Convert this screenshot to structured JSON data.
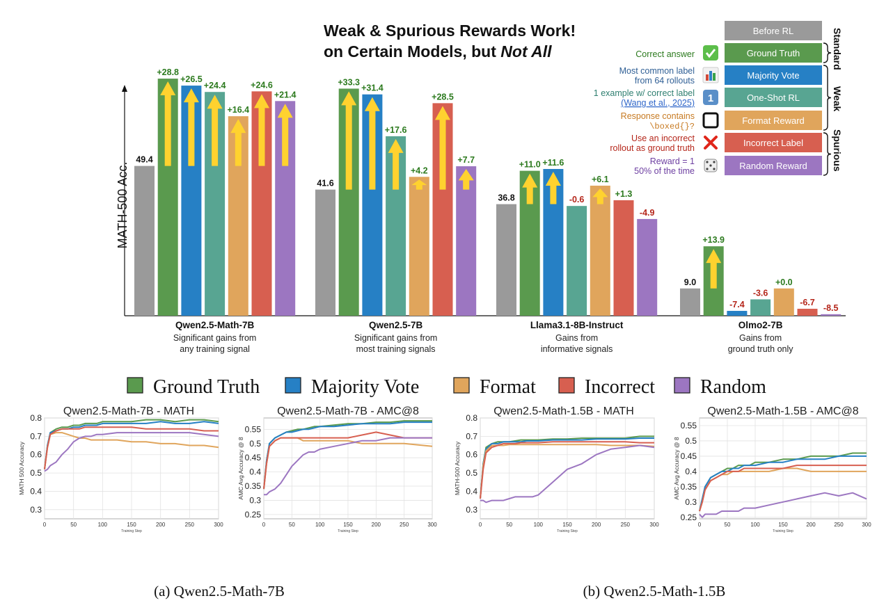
{
  "colors": {
    "before": "#9a9a9a",
    "ground_truth": "#5a9a4e",
    "majority_vote": "#2680c5",
    "one_shot": "#58a592",
    "format": "#e0a55c",
    "incorrect": "#d75f50",
    "random": "#9c76c1",
    "arrow": "#ffd22f",
    "pos_label": "#2c7a1e",
    "neg_label": "#b5261a",
    "header_gray": "#9a9a9a"
  },
  "top": {
    "title_line1": "Weak & Spurious Rewards Work!",
    "title_line2_a": "on Certain Models, but ",
    "title_line2_b": "Not All",
    "ylabel": "MATH-500 Acc.",
    "legend_header": "Before RL",
    "legend": [
      {
        "key": "ground_truth",
        "label": "Ground Truth",
        "desc": [
          "Correct answer"
        ],
        "desc_color": "#2c7a1e",
        "icon": "check-icon"
      },
      {
        "key": "majority_vote",
        "label": "Majority Vote",
        "desc": [
          "Most common label",
          "from 64 rollouts"
        ],
        "desc_color": "#2f5f95",
        "icon": "bar-chart-icon"
      },
      {
        "key": "one_shot",
        "label": "One-Shot RL",
        "desc": [
          "1 example w/ correct label",
          "(Wang et al., 2025)"
        ],
        "desc_color": "#2f7f70",
        "icon": "one-icon"
      },
      {
        "key": "format",
        "label": "Format Reward",
        "desc": [
          "Response contains",
          "\\boxed{}?"
        ],
        "desc_color": "#c77a22",
        "icon": "box-icon"
      },
      {
        "key": "incorrect",
        "label": "Incorrect Label",
        "desc": [
          "Use an incorrect",
          "rollout as ground truth"
        ],
        "desc_color": "#b5261a",
        "icon": "cross-icon"
      },
      {
        "key": "random",
        "label": "Random Reward",
        "desc": [
          "Reward = 1",
          "50% of the time"
        ],
        "desc_color": "#6d3fa1",
        "icon": "dice-icon"
      }
    ],
    "brace_labels": {
      "standard": "Standard",
      "weak": "Weak",
      "spurious": "Spurious"
    }
  },
  "chart_data": [
    {
      "type": "bar",
      "title": "Weak & Spurious Rewards Work! on Certain Models, but Not All",
      "ylabel": "MATH-500 Acc.",
      "ylim": [
        0,
        80
      ],
      "series_names": [
        "Before RL",
        "Ground Truth",
        "Majority Vote",
        "One-Shot RL",
        "Format Reward",
        "Incorrect Label",
        "Random Reward"
      ],
      "groups": [
        {
          "name": "Qwen2.5-Math-7B",
          "subtitle": [
            "Significant gains from",
            "any training signal"
          ],
          "before": 49.4,
          "deltas": [
            28.8,
            26.5,
            24.4,
            16.4,
            24.6,
            21.4
          ],
          "labels": [
            "49.4",
            "+28.8",
            "+26.5",
            "+24.4",
            "+16.4",
            "+24.6",
            "+21.4"
          ]
        },
        {
          "name": "Qwen2.5-7B",
          "subtitle": [
            "Significant gains from",
            "most training signals"
          ],
          "before": 41.6,
          "deltas": [
            33.3,
            31.4,
            17.6,
            4.2,
            28.5,
            7.7
          ],
          "labels": [
            "41.6",
            "+33.3",
            "+31.4",
            "+17.6",
            "+4.2",
            "+28.5",
            "+7.7"
          ]
        },
        {
          "name": "Llama3.1-8B-Instruct",
          "subtitle": [
            "Gains from",
            "informative signals"
          ],
          "before": 36.8,
          "deltas": [
            11.0,
            11.6,
            -0.6,
            6.1,
            1.3,
            -4.9
          ],
          "labels": [
            "36.8",
            "+11.0",
            "+11.6",
            "-0.6",
            "+6.1",
            "+1.3",
            "-4.9"
          ]
        },
        {
          "name": "Olmo2-7B",
          "subtitle": [
            "Gains from",
            "ground truth only"
          ],
          "before": 9.0,
          "deltas": [
            13.9,
            -7.4,
            -3.6,
            0.0,
            -6.7,
            -8.5
          ],
          "labels": [
            "9.0",
            "+13.9",
            "-7.4",
            "-3.6",
            "+0.0",
            "-6.7",
            "-8.5"
          ]
        }
      ]
    },
    {
      "type": "line",
      "title": "Qwen2.5-Math-7B - MATH",
      "xlabel": "Training Step",
      "ylabel": "MATH 500 Accuracy",
      "xlim": [
        0,
        300
      ],
      "ylim": [
        0.25,
        0.8
      ],
      "yticks": [
        0.3,
        0.4,
        0.5,
        0.6,
        0.7,
        0.8
      ],
      "xticks": [
        0,
        50,
        100,
        150,
        200,
        250,
        300
      ],
      "x": [
        0,
        5,
        10,
        20,
        30,
        40,
        50,
        60,
        70,
        80,
        90,
        100,
        125,
        150,
        175,
        200,
        225,
        250,
        275,
        300
      ],
      "series": [
        {
          "name": "Ground Truth",
          "values": [
            0.52,
            0.65,
            0.72,
            0.74,
            0.75,
            0.75,
            0.76,
            0.76,
            0.77,
            0.77,
            0.77,
            0.78,
            0.78,
            0.78,
            0.79,
            0.79,
            0.78,
            0.79,
            0.79,
            0.78
          ]
        },
        {
          "name": "Majority Vote",
          "values": [
            0.52,
            0.65,
            0.72,
            0.73,
            0.74,
            0.74,
            0.75,
            0.75,
            0.76,
            0.76,
            0.76,
            0.77,
            0.77,
            0.77,
            0.77,
            0.78,
            0.77,
            0.77,
            0.78,
            0.77
          ]
        },
        {
          "name": "Format",
          "values": [
            0.52,
            0.64,
            0.71,
            0.72,
            0.72,
            0.71,
            0.7,
            0.69,
            0.69,
            0.68,
            0.68,
            0.68,
            0.68,
            0.67,
            0.67,
            0.66,
            0.66,
            0.65,
            0.65,
            0.64
          ]
        },
        {
          "name": "Incorrect",
          "values": [
            0.52,
            0.64,
            0.71,
            0.73,
            0.74,
            0.74,
            0.74,
            0.74,
            0.75,
            0.75,
            0.75,
            0.75,
            0.75,
            0.75,
            0.74,
            0.74,
            0.74,
            0.74,
            0.73,
            0.73
          ]
        },
        {
          "name": "Random",
          "values": [
            0.51,
            0.52,
            0.54,
            0.56,
            0.6,
            0.63,
            0.67,
            0.69,
            0.7,
            0.7,
            0.71,
            0.71,
            0.72,
            0.72,
            0.72,
            0.72,
            0.72,
            0.72,
            0.71,
            0.7
          ]
        }
      ]
    },
    {
      "type": "line",
      "title": "Qwen2.5-Math-7B - AMC@8",
      "xlabel": "Training Step",
      "ylabel": "AMC Avg Accuracy @ 8",
      "xlim": [
        0,
        300
      ],
      "ylim": [
        0.235,
        0.59
      ],
      "yticks": [
        0.25,
        0.3,
        0.35,
        0.4,
        0.45,
        0.5,
        0.55
      ],
      "xticks": [
        0,
        50,
        100,
        150,
        200,
        250,
        300
      ],
      "x": [
        0,
        5,
        10,
        20,
        30,
        40,
        50,
        60,
        70,
        80,
        90,
        100,
        125,
        150,
        175,
        200,
        225,
        250,
        275,
        300
      ],
      "series": [
        {
          "name": "Ground Truth",
          "values": [
            0.34,
            0.44,
            0.5,
            0.52,
            0.53,
            0.54,
            0.545,
            0.55,
            0.55,
            0.555,
            0.56,
            0.56,
            0.565,
            0.57,
            0.57,
            0.575,
            0.575,
            0.58,
            0.58,
            0.58
          ]
        },
        {
          "name": "Majority Vote",
          "values": [
            0.34,
            0.44,
            0.5,
            0.52,
            0.53,
            0.54,
            0.54,
            0.545,
            0.55,
            0.55,
            0.555,
            0.56,
            0.56,
            0.565,
            0.57,
            0.57,
            0.57,
            0.575,
            0.575,
            0.575
          ]
        },
        {
          "name": "Format",
          "values": [
            0.34,
            0.43,
            0.49,
            0.51,
            0.52,
            0.52,
            0.52,
            0.52,
            0.51,
            0.51,
            0.51,
            0.51,
            0.51,
            0.51,
            0.5,
            0.5,
            0.5,
            0.5,
            0.495,
            0.49
          ]
        },
        {
          "name": "Incorrect",
          "values": [
            0.34,
            0.43,
            0.49,
            0.51,
            0.52,
            0.52,
            0.52,
            0.52,
            0.52,
            0.52,
            0.52,
            0.52,
            0.52,
            0.52,
            0.53,
            0.54,
            0.53,
            0.52,
            0.52,
            0.52
          ]
        },
        {
          "name": "Random",
          "values": [
            0.32,
            0.32,
            0.33,
            0.34,
            0.36,
            0.39,
            0.42,
            0.44,
            0.46,
            0.47,
            0.47,
            0.48,
            0.49,
            0.5,
            0.51,
            0.51,
            0.52,
            0.52,
            0.52,
            0.52
          ]
        }
      ]
    },
    {
      "type": "line",
      "title": "Qwen2.5-Math-1.5B - MATH",
      "xlabel": "Training Step",
      "ylabel": "MATH-500 Accuracy",
      "xlim": [
        0,
        300
      ],
      "ylim": [
        0.25,
        0.8
      ],
      "yticks": [
        0.3,
        0.4,
        0.5,
        0.6,
        0.7,
        0.8
      ],
      "xticks": [
        0,
        50,
        100,
        150,
        200,
        250,
        300
      ],
      "x": [
        0,
        5,
        10,
        20,
        30,
        40,
        50,
        60,
        70,
        80,
        90,
        100,
        125,
        150,
        175,
        200,
        225,
        250,
        275,
        300
      ],
      "series": [
        {
          "name": "Ground Truth",
          "values": [
            0.36,
            0.55,
            0.64,
            0.66,
            0.67,
            0.67,
            0.67,
            0.675,
            0.68,
            0.68,
            0.68,
            0.68,
            0.685,
            0.685,
            0.69,
            0.69,
            0.69,
            0.69,
            0.7,
            0.7
          ]
        },
        {
          "name": "Majority Vote",
          "values": [
            0.36,
            0.55,
            0.63,
            0.66,
            0.66,
            0.67,
            0.67,
            0.67,
            0.67,
            0.675,
            0.675,
            0.675,
            0.68,
            0.68,
            0.68,
            0.685,
            0.685,
            0.685,
            0.69,
            0.69
          ]
        },
        {
          "name": "Format",
          "values": [
            0.36,
            0.54,
            0.62,
            0.65,
            0.65,
            0.65,
            0.655,
            0.655,
            0.655,
            0.655,
            0.655,
            0.655,
            0.655,
            0.655,
            0.655,
            0.655,
            0.65,
            0.65,
            0.65,
            0.645
          ]
        },
        {
          "name": "Incorrect",
          "values": [
            0.36,
            0.52,
            0.61,
            0.64,
            0.65,
            0.66,
            0.66,
            0.66,
            0.665,
            0.665,
            0.665,
            0.665,
            0.67,
            0.67,
            0.67,
            0.67,
            0.67,
            0.67,
            0.665,
            0.665
          ]
        },
        {
          "name": "Random",
          "values": [
            0.35,
            0.35,
            0.34,
            0.35,
            0.35,
            0.35,
            0.36,
            0.37,
            0.37,
            0.37,
            0.37,
            0.38,
            0.45,
            0.52,
            0.55,
            0.6,
            0.63,
            0.64,
            0.65,
            0.64
          ]
        }
      ]
    },
    {
      "type": "line",
      "title": "Qwen2.5-Math-1.5B - AMC@8",
      "xlabel": "Training Step",
      "ylabel": "AMC Avg Accuracy @ 8",
      "xlim": [
        0,
        300
      ],
      "ylim": [
        0.245,
        0.575
      ],
      "yticks": [
        0.25,
        0.3,
        0.35,
        0.4,
        0.45,
        0.5,
        0.55
      ],
      "xticks": [
        0,
        50,
        100,
        150,
        200,
        250,
        300
      ],
      "x": [
        0,
        5,
        10,
        20,
        30,
        40,
        50,
        60,
        70,
        80,
        90,
        100,
        125,
        150,
        175,
        200,
        225,
        250,
        275,
        300
      ],
      "series": [
        {
          "name": "Ground Truth",
          "values": [
            0.27,
            0.31,
            0.35,
            0.38,
            0.39,
            0.4,
            0.41,
            0.41,
            0.42,
            0.42,
            0.42,
            0.43,
            0.43,
            0.44,
            0.44,
            0.45,
            0.45,
            0.45,
            0.46,
            0.46
          ]
        },
        {
          "name": "Majority Vote",
          "values": [
            0.27,
            0.31,
            0.35,
            0.38,
            0.39,
            0.4,
            0.4,
            0.41,
            0.41,
            0.42,
            0.42,
            0.42,
            0.43,
            0.43,
            0.44,
            0.44,
            0.44,
            0.45,
            0.45,
            0.45
          ]
        },
        {
          "name": "Format",
          "values": [
            0.27,
            0.3,
            0.34,
            0.37,
            0.38,
            0.39,
            0.39,
            0.4,
            0.4,
            0.4,
            0.4,
            0.4,
            0.4,
            0.41,
            0.41,
            0.4,
            0.4,
            0.4,
            0.4,
            0.4
          ]
        },
        {
          "name": "Incorrect",
          "values": [
            0.27,
            0.3,
            0.34,
            0.37,
            0.38,
            0.39,
            0.4,
            0.4,
            0.4,
            0.41,
            0.41,
            0.41,
            0.41,
            0.41,
            0.42,
            0.42,
            0.42,
            0.42,
            0.42,
            0.42
          ]
        },
        {
          "name": "Random",
          "values": [
            0.26,
            0.25,
            0.26,
            0.26,
            0.26,
            0.27,
            0.27,
            0.27,
            0.27,
            0.28,
            0.28,
            0.28,
            0.29,
            0.3,
            0.31,
            0.32,
            0.33,
            0.32,
            0.33,
            0.31
          ]
        }
      ]
    }
  ],
  "bottom": {
    "legend": [
      {
        "key": "ground_truth",
        "label": "Ground Truth"
      },
      {
        "key": "majority_vote",
        "label": "Majority Vote"
      },
      {
        "key": "format",
        "label": "Format"
      },
      {
        "key": "incorrect",
        "label": "Incorrect"
      },
      {
        "key": "random",
        "label": "Random"
      }
    ],
    "captions": {
      "a": "(a) Qwen2.5-Math-7B",
      "b": "(b) Qwen2.5-Math-1.5B"
    }
  }
}
